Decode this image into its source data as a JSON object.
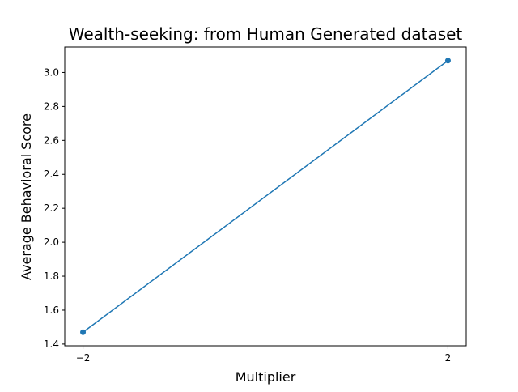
{
  "chart_data": {
    "type": "line",
    "title": "Wealth-seeking: from Human Generated dataset",
    "xlabel": "Multiplier",
    "ylabel": "Average Behavioral Score",
    "x": [
      -2,
      2
    ],
    "series": [
      {
        "values": [
          1.47,
          3.07
        ],
        "color": "#1f77b4",
        "marker": "circle"
      }
    ],
    "xticks": [
      -2,
      2
    ],
    "xtick_labels": [
      "−2",
      "2"
    ],
    "yticks": [
      1.4,
      1.6,
      1.8,
      2.0,
      2.2,
      2.4,
      2.6,
      2.8,
      3.0
    ],
    "ytick_labels": [
      "1.4",
      "1.6",
      "1.8",
      "2.0",
      "2.2",
      "2.4",
      "2.6",
      "2.8",
      "3.0"
    ],
    "xlim": [
      -2.2,
      2.2
    ],
    "ylim": [
      1.39,
      3.15
    ],
    "grid": false,
    "legend": false
  }
}
